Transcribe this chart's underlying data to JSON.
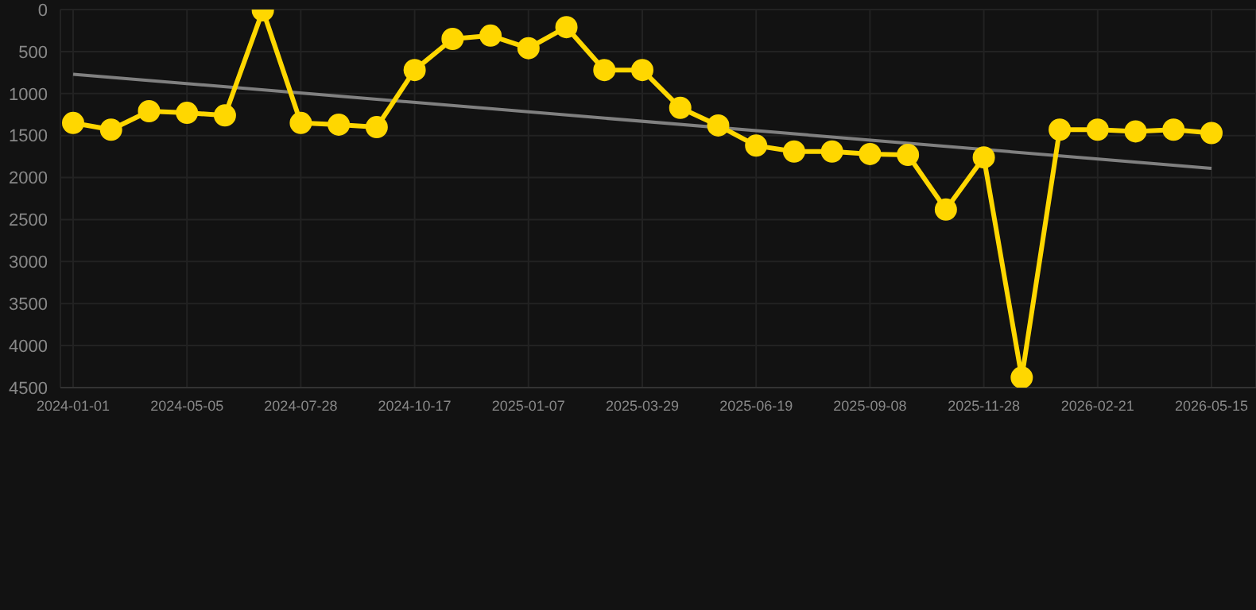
{
  "chart_data": {
    "type": "line",
    "categories": [
      "2024-01-01",
      null,
      null,
      "2024-05-05",
      null,
      null,
      "2024-07-28",
      null,
      null,
      "2024-10-17",
      null,
      null,
      "2025-01-07",
      null,
      null,
      "2025-03-29",
      null,
      null,
      "2025-06-19",
      null,
      null,
      "2025-09-08",
      null,
      null,
      "2025-11-28",
      null,
      null,
      "2026-02-21",
      null,
      null,
      "2026-05-15"
    ],
    "series": [
      {
        "color": "#ffd700",
        "marker": "circle",
        "values": [
          1350,
          1430,
          1210,
          1230,
          1260,
          10,
          1350,
          1370,
          1400,
          720,
          350,
          310,
          460,
          210,
          720,
          720,
          1170,
          1380,
          1620,
          1690,
          1690,
          1720,
          1730,
          2380,
          1760,
          4380,
          1430,
          1430,
          1450,
          1430,
          1470
        ]
      },
      {
        "type": "line",
        "color": "#808080",
        "marker": "none",
        "values": [
          770,
          null,
          null,
          null,
          null,
          null,
          null,
          null,
          null,
          null,
          null,
          null,
          null,
          null,
          null,
          null,
          null,
          null,
          null,
          null,
          null,
          null,
          null,
          null,
          null,
          null,
          null,
          null,
          null,
          null,
          1890
        ]
      }
    ],
    "ylim": [
      4500,
      0
    ],
    "yticks": [
      0,
      500,
      1000,
      1500,
      2000,
      2500,
      3000,
      3500,
      4000,
      4500
    ],
    "grid": true
  }
}
